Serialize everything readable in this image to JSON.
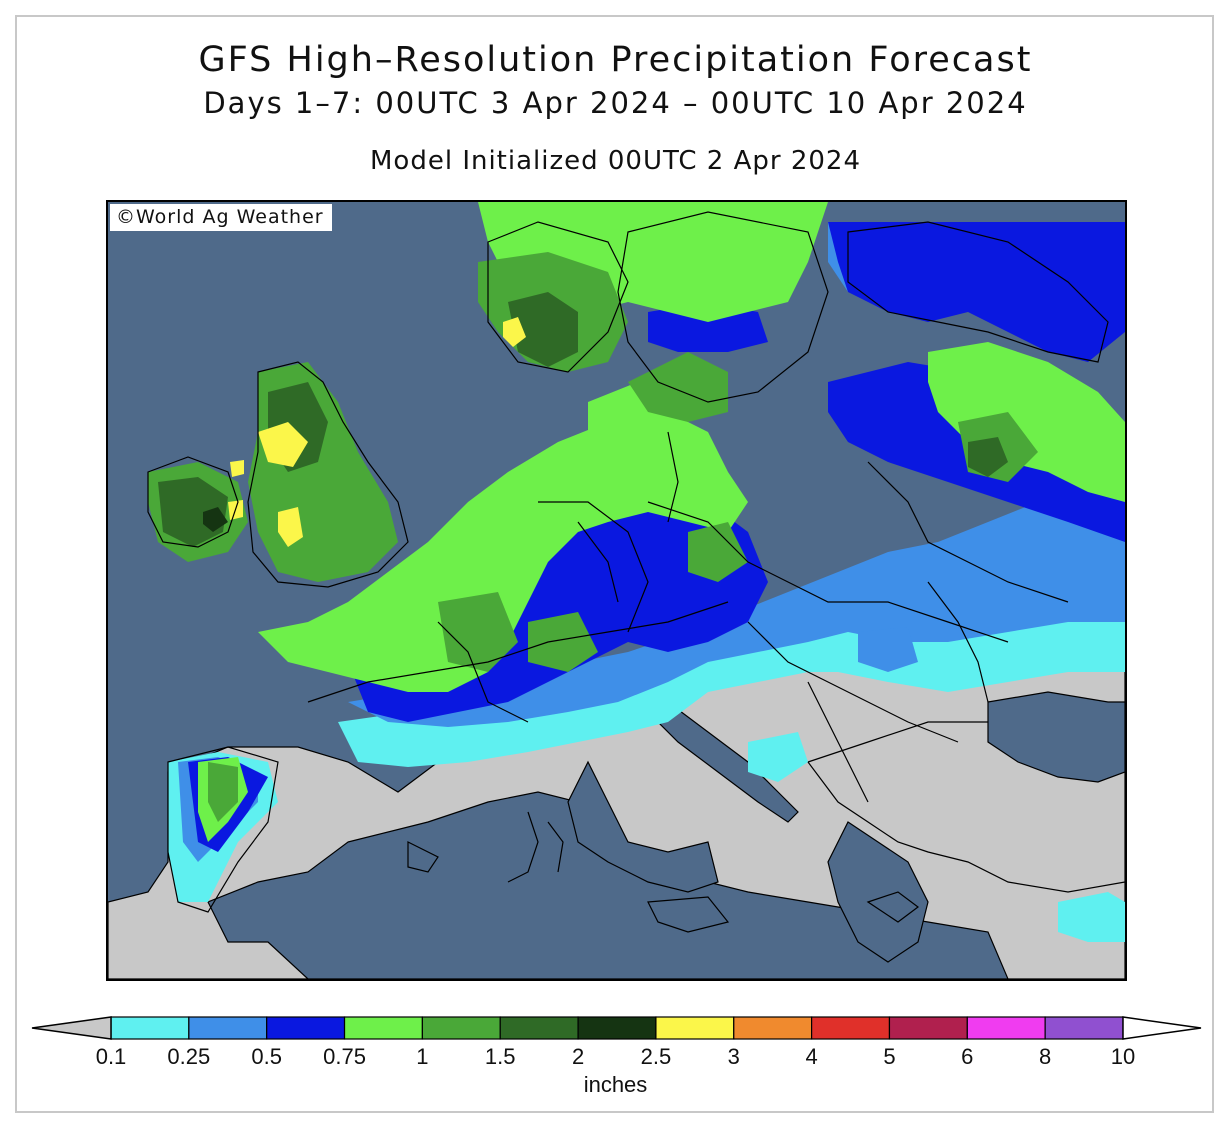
{
  "title": "GFS High–Resolution Precipitation Forecast",
  "subtitle": "Days 1–7: 00UTC 3 Apr 2024 – 00UTC 10 Apr 2024",
  "init_line": "Model Initialized 00UTC 2 Apr 2024",
  "credit": "©World Ag Weather",
  "colors": {
    "ocean": "#4f6a8a",
    "land_dry": "#c8c8c8",
    "below_min_arrow": "#c8c8c8",
    "above_max_arrow": "#ffffff"
  },
  "legend": {
    "units": "inches",
    "tick_labels": [
      "0.1",
      "0.25",
      "0.5",
      "0.75",
      "1",
      "1.5",
      "2",
      "2.5",
      "3",
      "4",
      "5",
      "6",
      "8",
      "10"
    ],
    "bins": [
      {
        "from": 0.1,
        "to": 0.25,
        "color": "#5ff0f0"
      },
      {
        "from": 0.25,
        "to": 0.5,
        "color": "#3f8fe8"
      },
      {
        "from": 0.5,
        "to": 0.75,
        "color": "#0a18e0"
      },
      {
        "from": 0.75,
        "to": 1,
        "color": "#6ef04a"
      },
      {
        "from": 1,
        "to": 1.5,
        "color": "#4aa838"
      },
      {
        "from": 1.5,
        "to": 2,
        "color": "#2f6a26"
      },
      {
        "from": 2,
        "to": 2.5,
        "color": "#153412"
      },
      {
        "from": 2.5,
        "to": 3,
        "color": "#fbf64a"
      },
      {
        "from": 3,
        "to": 4,
        "color": "#f08a2e"
      },
      {
        "from": 4,
        "to": 5,
        "color": "#e0302a"
      },
      {
        "from": 5,
        "to": 6,
        "color": "#b0204e"
      },
      {
        "from": 6,
        "to": 8,
        "color": "#f03cf0"
      },
      {
        "from": 8,
        "to": 10,
        "color": "#9050d0"
      }
    ]
  }
}
